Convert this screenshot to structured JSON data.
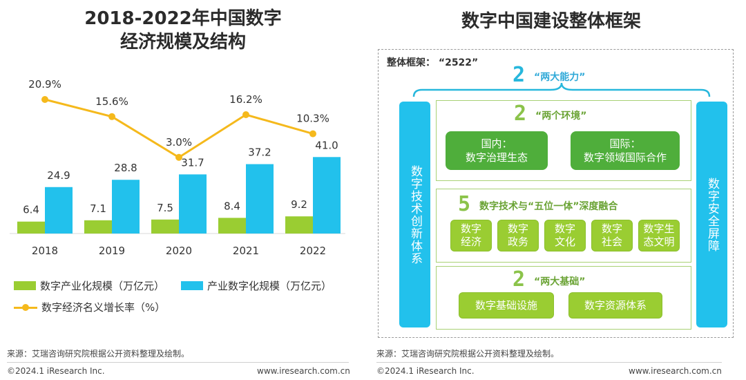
{
  "left": {
    "title_line1": "2018-2022年中国数字",
    "title_line2": "经济规模及结构"
  },
  "chart_data": {
    "type": "bar",
    "title": "2018-2022年中国数字经济规模及结构",
    "categories": [
      "2018",
      "2019",
      "2020",
      "2021",
      "2022"
    ],
    "series": [
      {
        "name": "数字产业化规模（万亿元）",
        "kind": "bar",
        "color": "#9acd32",
        "values": [
          6.4,
          7.1,
          7.5,
          8.4,
          9.2
        ],
        "labels": [
          "6.4",
          "7.1",
          "7.5",
          "8.4",
          "9.2"
        ]
      },
      {
        "name": "产业数字化规模（万亿元）",
        "kind": "bar",
        "color": "#22c1ec",
        "values": [
          24.9,
          28.8,
          31.7,
          37.2,
          41.0
        ],
        "labels": [
          "24.9",
          "28.8",
          "31.7",
          "37.2",
          "41.0"
        ]
      },
      {
        "name": "数字经济名义增长率（%）",
        "kind": "line",
        "color": "#f5b91c",
        "values": [
          20.9,
          15.6,
          3.0,
          16.2,
          10.3
        ],
        "labels": [
          "20.9%",
          "15.6%",
          "3.0%",
          "16.2%",
          "10.3%"
        ]
      }
    ],
    "xlabel": "",
    "ylabel": ""
  },
  "legend": {
    "item1": "数字产业化规模（万亿元）",
    "item2": "产业数字化规模（万亿元）",
    "item3": "数字经济名义增长率（%）"
  },
  "source": "来源：艾瑞咨询研究院根据公开资料整理及绘制。",
  "copyright": "©2024.1 iResearch Inc.",
  "website": "www.iresearch.com.cn",
  "right": {
    "title": "数字中国建设整体框架",
    "framework_label": "整体框架：  “2522”",
    "top": {
      "number": "2",
      "text": "“两大能力”"
    },
    "left_bar": "数字技术创新体系",
    "right_bar": "数字安全屏障",
    "env": {
      "number": "2",
      "text": "“两个环境”",
      "domestic_l1": "国内：",
      "domestic_l2": "数字治理生态",
      "intl_l1": "国际：",
      "intl_l2": "数字领域国际合作"
    },
    "five": {
      "number": "5",
      "text": "数字技术与“五位一体”深度融合",
      "items": [
        {
          "l1": "数字",
          "l2": "经济"
        },
        {
          "l1": "数字",
          "l2": "政务"
        },
        {
          "l1": "数字",
          "l2": "文化"
        },
        {
          "l1": "数字",
          "l2": "社会"
        },
        {
          "l1": "数字生",
          "l2": "态文明"
        }
      ]
    },
    "base": {
      "number": "2",
      "text": "“两大基础”",
      "item1": "数字基础设施",
      "item2": "数字资源体系"
    }
  }
}
